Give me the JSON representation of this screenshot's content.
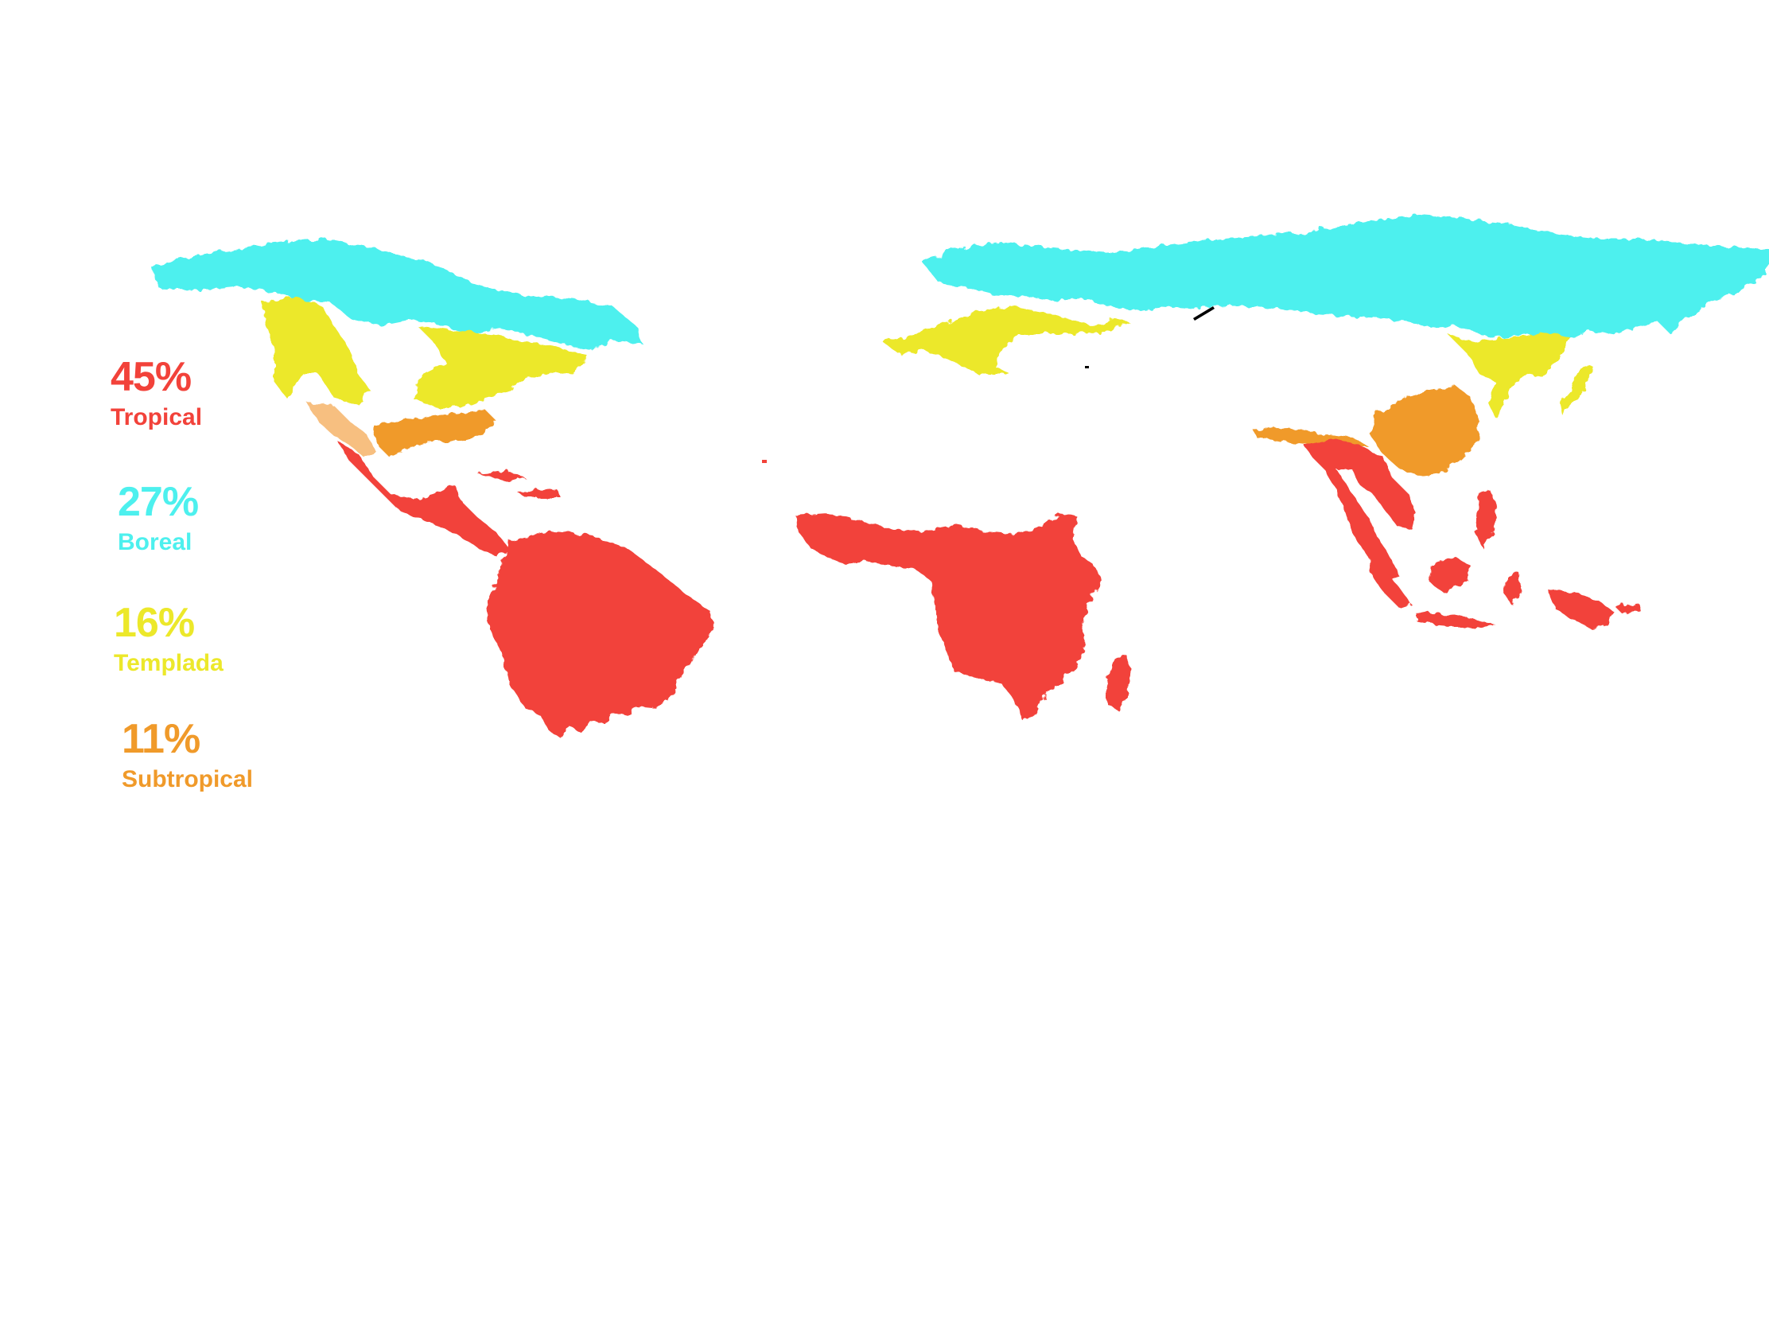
{
  "colors": {
    "tropical": "#f2423a",
    "boreal": "#4df0ee",
    "templada": "#ece82a",
    "subtropical": "#f09a2a",
    "subtropical_light": "#f7bf80",
    "background": "#ffffff"
  },
  "legend": [
    {
      "key": "tropical",
      "percent": "45%",
      "label": "Tropical",
      "color": "#f2423a"
    },
    {
      "key": "boreal",
      "percent": "27%",
      "label": "Boreal",
      "color": "#4df0ee"
    },
    {
      "key": "templada",
      "percent": "16%",
      "label": "Templada",
      "color": "#ece82a"
    },
    {
      "key": "subtropical",
      "percent": "11%",
      "label": "Subtropical",
      "color": "#f09a2a"
    }
  ]
}
